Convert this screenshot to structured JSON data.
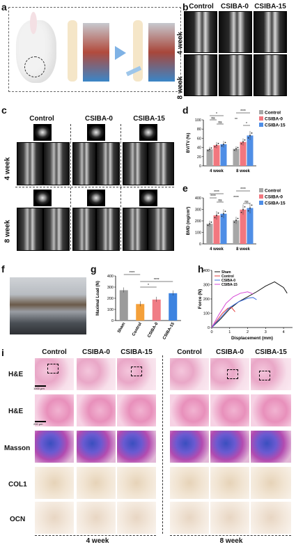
{
  "panels": {
    "a": "a",
    "b": "b",
    "c": "c",
    "d": "d",
    "e": "e",
    "f": "f",
    "g": "g",
    "h": "h",
    "i": "i"
  },
  "groups": [
    "Control",
    "CSIBA-0",
    "CSIBA-15"
  ],
  "weeks": [
    "4 week",
    "8 week"
  ],
  "histology_rows": [
    "H&E",
    "H&E",
    "Masson",
    "COL1",
    "OCN"
  ],
  "scale_bars": [
    "1000 μm",
    "200 μm"
  ],
  "colors": {
    "control": "#a7a7a7",
    "csiba0": "#f2777f",
    "csiba15": "#4f8ee6",
    "sham_g": "#9b9b9b",
    "control_g": "#f4a03a",
    "csiba0_g": "#f07d86",
    "csiba15_g": "#3d83e0"
  },
  "chart_data": [
    {
      "id": "d",
      "type": "bar",
      "ylabel": "BV/TV (%)",
      "ylim": [
        0,
        100
      ],
      "yticks": [
        0,
        20,
        40,
        60,
        80,
        100
      ],
      "categories": [
        "4 week",
        "8 week"
      ],
      "series": [
        {
          "name": "Control",
          "values": [
            36,
            37
          ]
        },
        {
          "name": "CSIBA-0",
          "values": [
            45,
            52
          ]
        },
        {
          "name": "CSIBA-15",
          "values": [
            47,
            66
          ]
        }
      ],
      "significance": [
        "*",
        "ns",
        "ns",
        "****",
        "**",
        "*"
      ]
    },
    {
      "id": "e",
      "type": "bar",
      "ylabel": "BMD (mg/cm³)",
      "ylim": [
        0,
        400
      ],
      "yticks": [
        0,
        100,
        200,
        300,
        400
      ],
      "categories": [
        "4 week",
        "8 week"
      ],
      "series": [
        {
          "name": "Control",
          "values": [
            175,
            205
          ]
        },
        {
          "name": "CSIBA-0",
          "values": [
            248,
            298
          ]
        },
        {
          "name": "CSIBA-15",
          "values": [
            262,
            312
          ]
        }
      ],
      "significance": [
        "****",
        "****",
        "ns",
        "****",
        "****",
        "ns"
      ]
    },
    {
      "id": "g",
      "type": "bar",
      "ylabel": "Maximal Load (N)",
      "ylim": [
        0,
        400
      ],
      "yticks": [
        0,
        100,
        200,
        300,
        400
      ],
      "categories": [
        "Sham",
        "Control",
        "CSIBA-0",
        "CSIBA-15"
      ],
      "values": [
        272,
        148,
        188,
        245
      ],
      "significance": [
        "****",
        "*",
        "****"
      ]
    },
    {
      "id": "h",
      "type": "line",
      "xlabel": "Displacement (mm)",
      "ylabel": "Force (N)",
      "xlim": [
        0,
        4.5
      ],
      "ylim": [
        0,
        400
      ],
      "xticks": [
        0,
        1,
        2,
        3,
        4
      ],
      "yticks": [
        0,
        100,
        200,
        300,
        400
      ],
      "series": [
        {
          "name": "Sham",
          "x": [
            0,
            0.5,
            1,
            1.5,
            2,
            2.5,
            3,
            3.5,
            4,
            4.2
          ],
          "y": [
            0,
            60,
            130,
            180,
            215,
            250,
            290,
            320,
            280,
            240
          ]
        },
        {
          "name": "Control",
          "x": [
            0,
            0.3,
            0.6,
            0.9,
            1.1,
            1.3
          ],
          "y": [
            0,
            50,
            100,
            135,
            140,
            110
          ]
        },
        {
          "name": "CSIBA-0",
          "x": [
            0,
            0.5,
            1,
            1.5,
            2,
            2.3,
            2.5
          ],
          "y": [
            0,
            70,
            140,
            180,
            205,
            210,
            195
          ]
        },
        {
          "name": "CSIBA-15",
          "x": [
            0,
            0.4,
            0.8,
            1.2,
            1.6,
            2.0,
            2.3
          ],
          "y": [
            0,
            90,
            170,
            215,
            240,
            250,
            235
          ]
        }
      ]
    }
  ]
}
